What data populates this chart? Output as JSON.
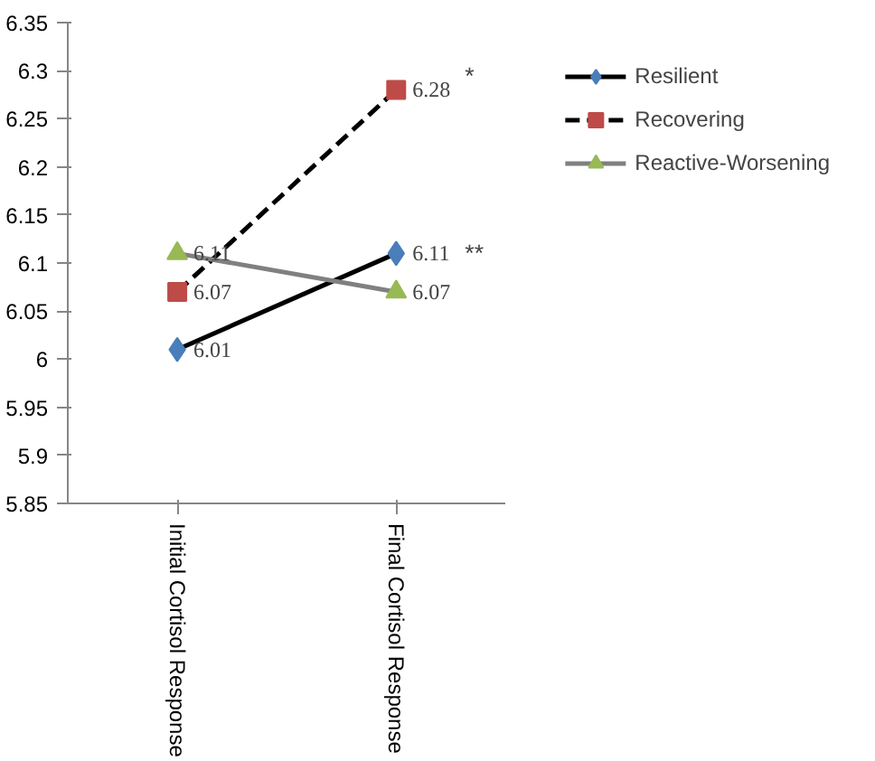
{
  "chart_data": {
    "type": "line",
    "categories": [
      "Initial Cortisol Response",
      "Final Cortisol Response"
    ],
    "series": [
      {
        "name": "Resilient",
        "color": "#000000",
        "colors": [
          "#4a7ebb",
          "#4a7ebb"
        ],
        "line_style": "solid",
        "marker": "diamond",
        "values": [
          6.01,
          6.11
        ]
      },
      {
        "name": "Recovering",
        "color": "#000000",
        "colors": [
          "#be4b48",
          "#be4b48"
        ],
        "line_style": "dashed",
        "marker": "square",
        "values": [
          6.07,
          6.28
        ]
      },
      {
        "name": "Reactive-Worsening",
        "color": "#808080",
        "colors": [
          "#98b954",
          "#98b954"
        ],
        "line_style": "solid",
        "marker": "triangle",
        "values": [
          6.11,
          6.07
        ]
      }
    ],
    "ylim": [
      5.85,
      6.35
    ],
    "yticks": [
      5.85,
      5.9,
      5.95,
      6,
      6.05,
      6.1,
      6.15,
      6.2,
      6.25,
      6.3,
      6.35
    ],
    "data_labels": true,
    "annotations": [
      {
        "text": "*",
        "x": "Final Cortisol Response",
        "y": 6.28
      },
      {
        "text": "**",
        "x": "Final Cortisol Response",
        "y": 6.11
      }
    ],
    "grid": false,
    "legend": "right"
  }
}
